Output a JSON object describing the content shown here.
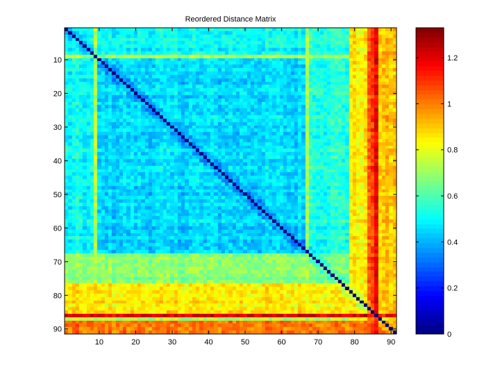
{
  "chart_data": {
    "type": "heatmap",
    "title": "Reordered Distance Matrix",
    "xlabel": "",
    "ylabel": "",
    "n": 91,
    "xlim": [
      0.5,
      91.5
    ],
    "ylim": [
      0.5,
      91.5
    ],
    "y_reversed": true,
    "x_ticks": [
      10,
      20,
      30,
      40,
      50,
      60,
      70,
      80,
      90
    ],
    "y_ticks": [
      10,
      20,
      30,
      40,
      50,
      60,
      70,
      80,
      90
    ],
    "colormap": "jet",
    "color_limits": [
      0,
      1.33
    ],
    "colorbar": {
      "ticks": [
        0,
        0.2,
        0.4,
        0.6,
        0.8,
        1,
        1.2
      ],
      "tick_labels": [
        "0",
        "0.2",
        "0.4",
        "0.6",
        "0.8",
        "1",
        "1.2"
      ],
      "location": "right"
    },
    "diagonal_value": 0,
    "approx_row_mean_distance": {
      "1-8": 0.5,
      "9": 0.72,
      "10-67": 0.45,
      "68-76": 0.68,
      "77-85": 0.85,
      "86": 1.2,
      "87": 0.75,
      "88-91": 1.0
    },
    "approx_column_mean_distance": {
      "1-8": 0.5,
      "9": 0.72,
      "10-66": 0.45,
      "67": 0.75,
      "68-78": 0.55,
      "79-83": 0.85,
      "84-85": 1.05,
      "86": 1.2,
      "87-91": 0.9
    },
    "grid": false
  }
}
